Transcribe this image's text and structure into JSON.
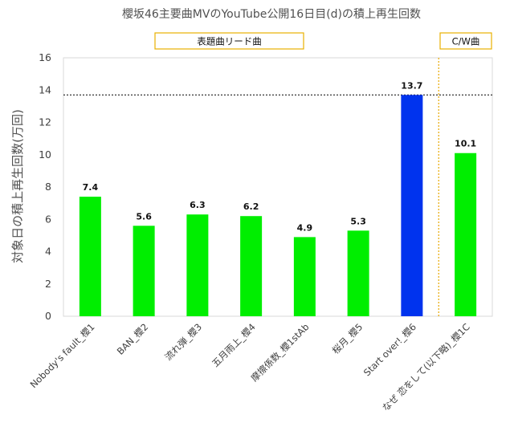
{
  "chart_data": {
    "type": "bar",
    "title": "櫻坂46主要曲MVのYouTube公開16日目(d)の積上再生回数",
    "ylabel": "対象日の積上再生回数(万回)",
    "xlabel": "",
    "ylim": [
      0,
      16
    ],
    "yticks": [
      0,
      2,
      4,
      6,
      8,
      10,
      12,
      14,
      16
    ],
    "grid": false,
    "categories": [
      "Nobody's fault_櫻1",
      "BAN_櫻2",
      "流れ弾_櫻3",
      "五月雨上_櫻4",
      "摩擦係数_櫻1stAb",
      "桜月_櫻5",
      "Start over!_櫻6",
      "なぜ 恋をして(以下略)_櫻1C"
    ],
    "values": [
      7.4,
      5.6,
      6.3,
      6.2,
      4.9,
      5.3,
      13.7,
      10.1
    ],
    "data_labels": [
      "7.4",
      "5.6",
      "6.3",
      "6.2",
      "4.9",
      "5.3",
      "13.7",
      "10.1"
    ],
    "bar_colors": [
      "#00ee00",
      "#00ee00",
      "#00ee00",
      "#00ee00",
      "#00ee00",
      "#00ee00",
      "#0033ee",
      "#00ee00"
    ],
    "reference_line": {
      "value": 13.7,
      "style": "dotted",
      "color": "#000000"
    },
    "group_divider": {
      "after_index": 6,
      "color": "#e8a800",
      "style": "dotted"
    },
    "group_labels": [
      {
        "text": "表題曲リード曲",
        "border_color": "#e8b000"
      },
      {
        "text": "C/W曲",
        "border_color": "#e8b000"
      }
    ]
  }
}
